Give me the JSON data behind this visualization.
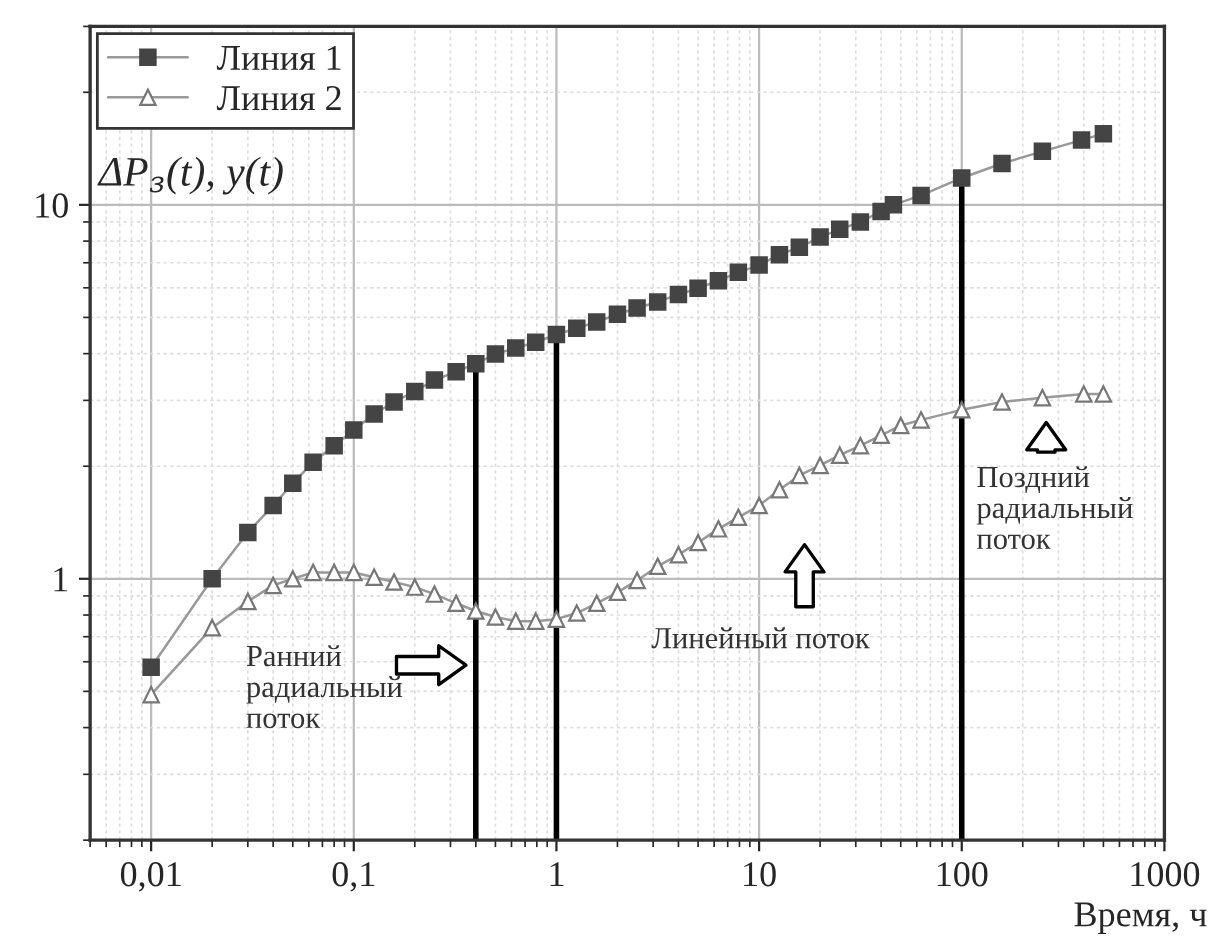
{
  "chart_data": {
    "type": "line",
    "xlabel": "Время, ч",
    "ylabel": "ΔP$_{з}$(t), y(t)",
    "log": "xy",
    "xlim": [
      0.005,
      1000
    ],
    "ylim": [
      0.2,
      30
    ],
    "xticks": [
      {
        "value": 0.01,
        "label": "0,01"
      },
      {
        "value": 0.1,
        "label": "0,1"
      },
      1,
      10,
      100,
      1000
    ],
    "yticks": [
      1,
      10
    ],
    "grid": true,
    "legend": "top left",
    "series": [
      {
        "name": "Линия 1",
        "color": "#444444",
        "marker": "square",
        "x": [
          0.01,
          0.02,
          0.03,
          0.04,
          0.05,
          0.063,
          0.08,
          0.1,
          0.126,
          0.158,
          0.2,
          0.25,
          0.32,
          0.4,
          0.5,
          0.63,
          0.79,
          1.0,
          1.26,
          1.58,
          2.0,
          2.5,
          3.16,
          4.0,
          5.0,
          6.3,
          7.9,
          10,
          12.6,
          15.8,
          20,
          25,
          31.6,
          40,
          46,
          63,
          100,
          158,
          250,
          390,
          500
        ],
        "values": [
          0.58,
          1.0,
          1.33,
          1.57,
          1.8,
          2.05,
          2.27,
          2.5,
          2.76,
          2.97,
          3.17,
          3.4,
          3.58,
          3.76,
          3.99,
          4.14,
          4.29,
          4.5,
          4.68,
          4.86,
          5.1,
          5.3,
          5.5,
          5.76,
          5.98,
          6.27,
          6.6,
          6.9,
          7.36,
          7.7,
          8.2,
          8.6,
          9.0,
          9.6,
          10.0,
          10.6,
          11.8,
          12.9,
          13.9,
          14.9,
          15.5
        ]
      },
      {
        "name": "Линия 2",
        "color": "#777777",
        "marker": "triangle",
        "x": [
          0.01,
          0.02,
          0.03,
          0.04,
          0.05,
          0.063,
          0.08,
          0.1,
          0.126,
          0.158,
          0.2,
          0.25,
          0.32,
          0.4,
          0.5,
          0.63,
          0.79,
          1.0,
          1.26,
          1.58,
          2.0,
          2.5,
          3.16,
          4.0,
          5.0,
          6.3,
          7.9,
          10,
          12.6,
          15.8,
          20,
          25,
          31.6,
          40,
          50,
          63,
          100,
          158,
          250,
          400,
          500
        ],
        "values": [
          0.49,
          0.74,
          0.87,
          0.96,
          1.0,
          1.04,
          1.04,
          1.04,
          1.01,
          0.98,
          0.95,
          0.91,
          0.86,
          0.82,
          0.79,
          0.77,
          0.77,
          0.78,
          0.81,
          0.86,
          0.92,
          0.99,
          1.08,
          1.16,
          1.25,
          1.36,
          1.46,
          1.57,
          1.73,
          1.89,
          2.01,
          2.14,
          2.27,
          2.42,
          2.57,
          2.66,
          2.83,
          2.97,
          3.05,
          3.12,
          3.12
        ]
      }
    ],
    "ref_lines": [
      {
        "axis": "x",
        "value": 0.4,
        "color": "#000000"
      },
      {
        "axis": "x",
        "value": 1,
        "color": "#000000"
      },
      {
        "axis": "x",
        "value": 100,
        "color": "#000000"
      }
    ],
    "annotations": [
      "Ранний\nрадиальный\nпоток",
      "Линейный поток",
      "Поздний\nрадиальный\nпоток"
    ]
  }
}
